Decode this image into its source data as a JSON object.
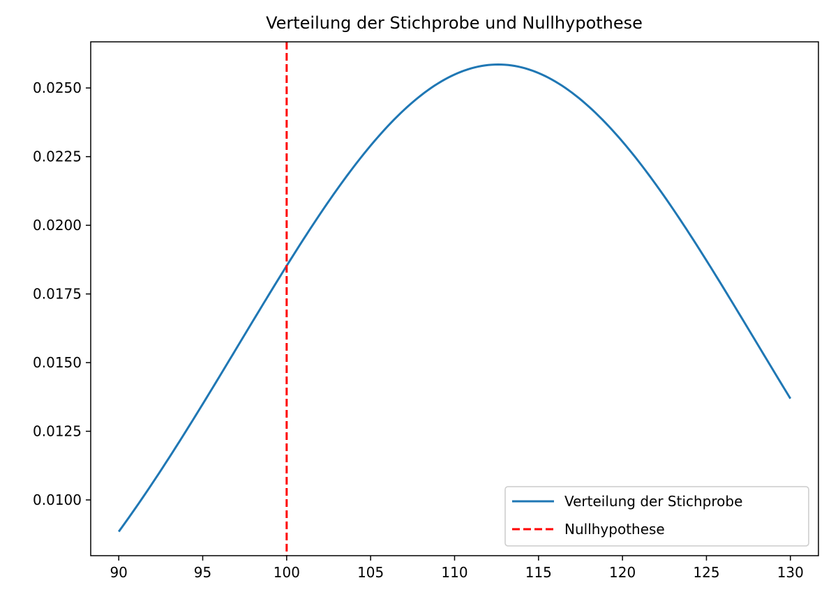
{
  "chart_data": {
    "type": "line",
    "title": "Verteilung der Stichprobe und Nullhypothese",
    "xlabel": "",
    "ylabel": "",
    "xlim": [
      88.33,
      131.67
    ],
    "ylim": [
      0.00797,
      0.02668
    ],
    "xticks": [
      90,
      95,
      100,
      105,
      110,
      115,
      120,
      125,
      130
    ],
    "xtick_labels": [
      "90",
      "95",
      "100",
      "105",
      "110",
      "115",
      "120",
      "125",
      "130"
    ],
    "yticks": [
      0.01,
      0.0125,
      0.015,
      0.0175,
      0.02,
      0.0225,
      0.025
    ],
    "ytick_labels": [
      "0.0100",
      "0.0125",
      "0.0150",
      "0.0175",
      "0.0200",
      "0.0225",
      "0.0250"
    ],
    "grid": false,
    "legend_position": "lower-right",
    "series": [
      {
        "name": "Verteilung der Stichprobe",
        "kind": "normal-pdf-curve",
        "mean": 112.6,
        "std": 15.43,
        "x_range": [
          90,
          130
        ],
        "color": "#1f77b4",
        "style": "solid"
      },
      {
        "name": "Nullhypothese",
        "kind": "vertical-line",
        "x": 100,
        "color": "#ff0000",
        "style": "dashed"
      }
    ]
  }
}
